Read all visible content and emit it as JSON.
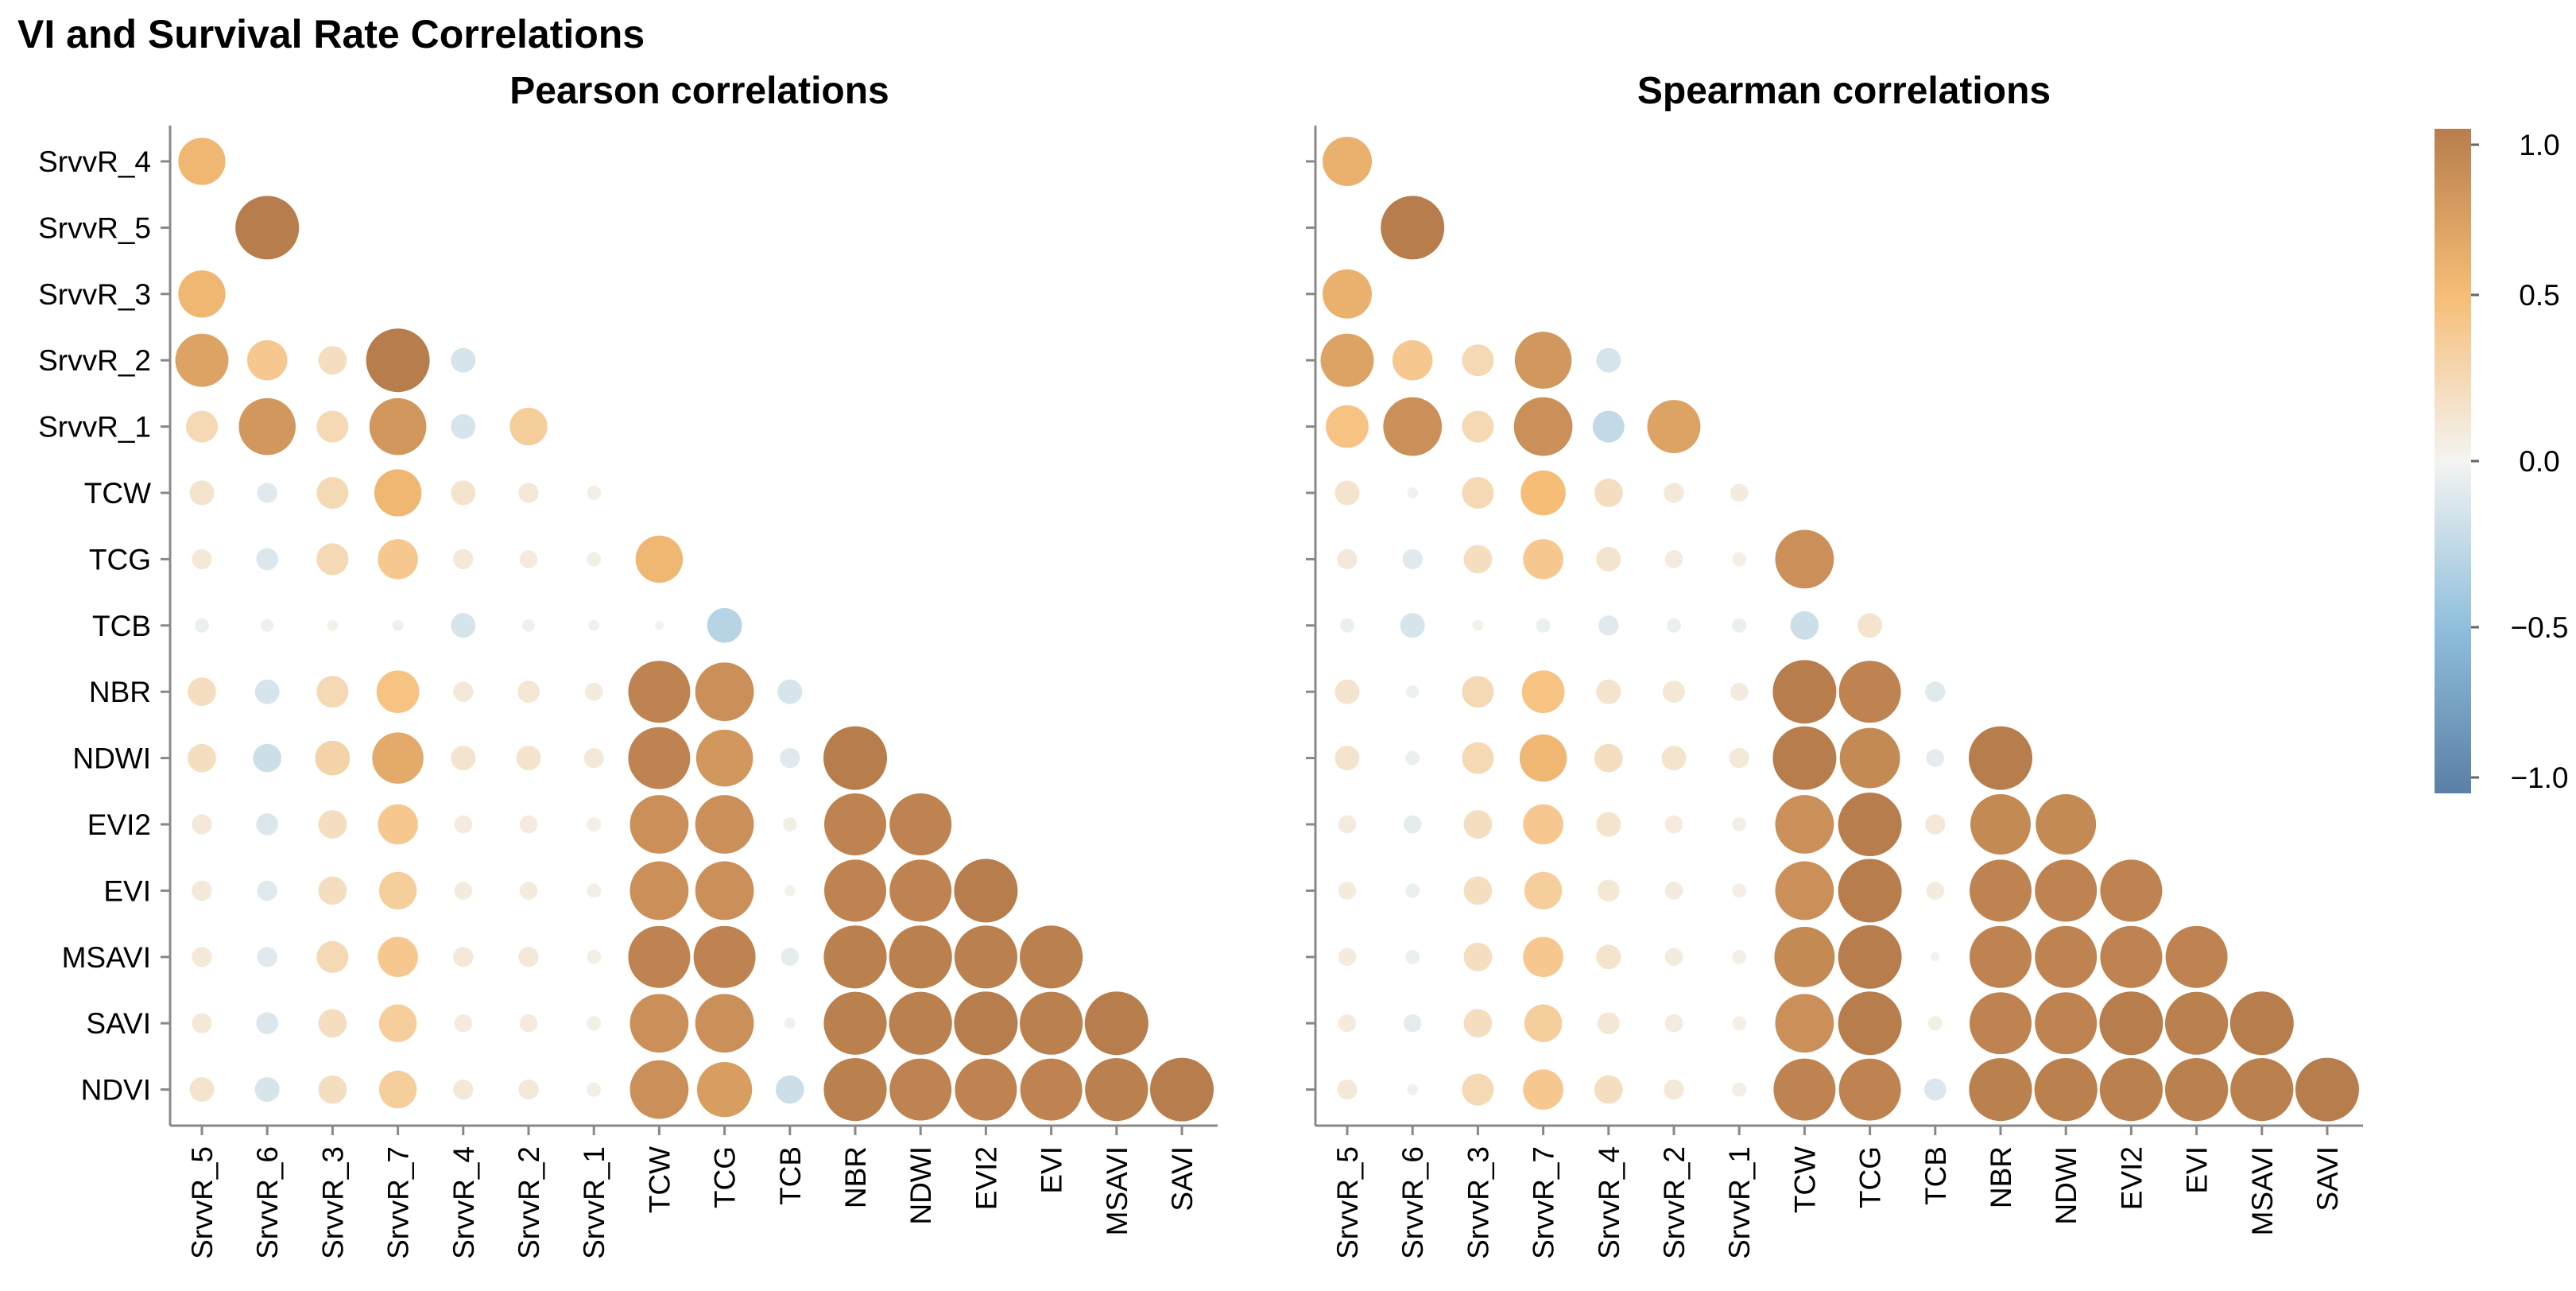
{
  "chart_data": {
    "type": "correlation-bubble",
    "title": "VI and Survival Rate Correlations",
    "row_labels": [
      "SrvvR_4",
      "SrvvR_5",
      "SrvvR_3",
      "SrvvR_2",
      "SrvvR_1",
      "TCW",
      "TCG",
      "TCB",
      "NBR",
      "NDWI",
      "EVI2",
      "EVI",
      "MSAVI",
      "SAVI",
      "NDVI"
    ],
    "col_labels": [
      "SrvvR_5",
      "SrvvR_6",
      "SrvvR_3",
      "SrvvR_7",
      "SrvvR_4",
      "SrvvR_2",
      "SrvvR_1",
      "TCW",
      "TCG",
      "TCB",
      "NBR",
      "NDWI",
      "EVI2",
      "EVI",
      "MSAVI",
      "SAVI"
    ],
    "colorbar": {
      "domain": [
        -1.0,
        1.0
      ],
      "tick_labels": [
        "1.0",
        "0.5",
        "0.0",
        "−0.5",
        "−1.0"
      ],
      "tick_values": [
        1.0,
        0.5,
        0.0,
        -0.5,
        -1.0
      ],
      "stops": [
        {
          "value": -1.0,
          "color": "#5b7fa6"
        },
        {
          "value": -0.5,
          "color": "#8fbfdc"
        },
        {
          "value": 0.0,
          "color": "#f4f4f2"
        },
        {
          "value": 0.5,
          "color": "#f6bd76"
        },
        {
          "value": 1.0,
          "color": "#b87d4c"
        }
      ]
    },
    "panels": [
      {
        "title": "Pearson correlations",
        "values": [
          [
            0.55
          ],
          [
            null,
            1.0
          ],
          [
            0.55
          ],
          [
            0.7,
            0.4,
            0.2,
            1.0,
            -0.15
          ],
          [
            0.25,
            0.8,
            0.25,
            0.8,
            -0.15,
            0.35
          ],
          [
            0.15,
            -0.1,
            0.25,
            0.55,
            0.15,
            0.1,
            0.05
          ],
          [
            0.1,
            -0.12,
            0.25,
            0.4,
            0.1,
            0.08,
            0.05,
            0.55
          ],
          [
            -0.05,
            -0.04,
            0.03,
            -0.03,
            -0.15,
            -0.04,
            -0.03,
            0.02,
            -0.3
          ],
          [
            0.2,
            -0.15,
            0.25,
            0.45,
            0.1,
            0.12,
            0.08,
            0.95,
            0.85,
            -0.15
          ],
          [
            0.2,
            -0.2,
            0.3,
            0.65,
            0.15,
            0.15,
            0.1,
            0.95,
            0.8,
            -0.1,
            1.0
          ],
          [
            0.1,
            -0.12,
            0.2,
            0.4,
            0.08,
            0.08,
            0.05,
            0.85,
            0.85,
            0.05,
            0.95,
            0.95
          ],
          [
            0.1,
            -0.1,
            0.2,
            0.35,
            0.08,
            0.08,
            0.05,
            0.85,
            0.85,
            0.03,
            0.95,
            0.95,
            1.0
          ],
          [
            0.1,
            -0.1,
            0.25,
            0.4,
            0.1,
            0.1,
            0.05,
            0.95,
            0.95,
            -0.08,
            0.98,
            0.98,
            0.98,
            0.98
          ],
          [
            0.1,
            -0.12,
            0.2,
            0.35,
            0.08,
            0.08,
            0.05,
            0.85,
            0.85,
            -0.03,
            0.98,
            0.98,
            1.0,
            0.98,
            1.0
          ],
          [
            0.15,
            -0.15,
            0.2,
            0.35,
            0.1,
            0.1,
            0.05,
            0.85,
            0.75,
            -0.2,
            0.98,
            0.95,
            0.95,
            0.95,
            0.98,
            1.0
          ]
        ]
      },
      {
        "title": "Spearman correlations",
        "values": [
          [
            0.6
          ],
          [
            null,
            1.0
          ],
          [
            0.6
          ],
          [
            0.7,
            0.4,
            0.25,
            0.8,
            -0.15
          ],
          [
            0.45,
            0.85,
            0.25,
            0.85,
            -0.25,
            0.7
          ],
          [
            0.15,
            -0.03,
            0.25,
            0.5,
            0.2,
            0.1,
            0.08
          ],
          [
            0.1,
            -0.1,
            0.2,
            0.4,
            0.15,
            0.08,
            0.05,
            0.85
          ],
          [
            -0.05,
            -0.15,
            0.03,
            -0.05,
            -0.1,
            -0.05,
            -0.05,
            -0.2,
            0.15
          ],
          [
            0.15,
            -0.04,
            0.25,
            0.45,
            0.15,
            0.12,
            0.08,
            1.0,
            0.95,
            -0.1
          ],
          [
            0.15,
            -0.05,
            0.25,
            0.55,
            0.2,
            0.15,
            0.1,
            1.0,
            0.9,
            -0.08,
            1.0
          ],
          [
            0.08,
            -0.08,
            0.2,
            0.4,
            0.15,
            0.08,
            0.05,
            0.85,
            1.0,
            0.1,
            0.9,
            0.9
          ],
          [
            0.08,
            -0.05,
            0.2,
            0.35,
            0.12,
            0.08,
            0.05,
            0.85,
            1.0,
            0.08,
            0.95,
            0.95,
            0.95
          ],
          [
            0.08,
            -0.05,
            0.2,
            0.4,
            0.15,
            0.08,
            0.05,
            0.9,
            1.0,
            0.02,
            0.95,
            0.95,
            0.95,
            0.95
          ],
          [
            0.08,
            -0.08,
            0.2,
            0.35,
            0.12,
            0.08,
            0.05,
            0.85,
            1.0,
            0.05,
            0.95,
            0.95,
            1.0,
            0.98,
            1.0
          ],
          [
            0.1,
            -0.03,
            0.25,
            0.4,
            0.2,
            0.1,
            0.05,
            0.95,
            0.95,
            -0.12,
            0.98,
            0.98,
            0.98,
            0.98,
            0.98,
            1.0
          ]
        ]
      }
    ]
  }
}
